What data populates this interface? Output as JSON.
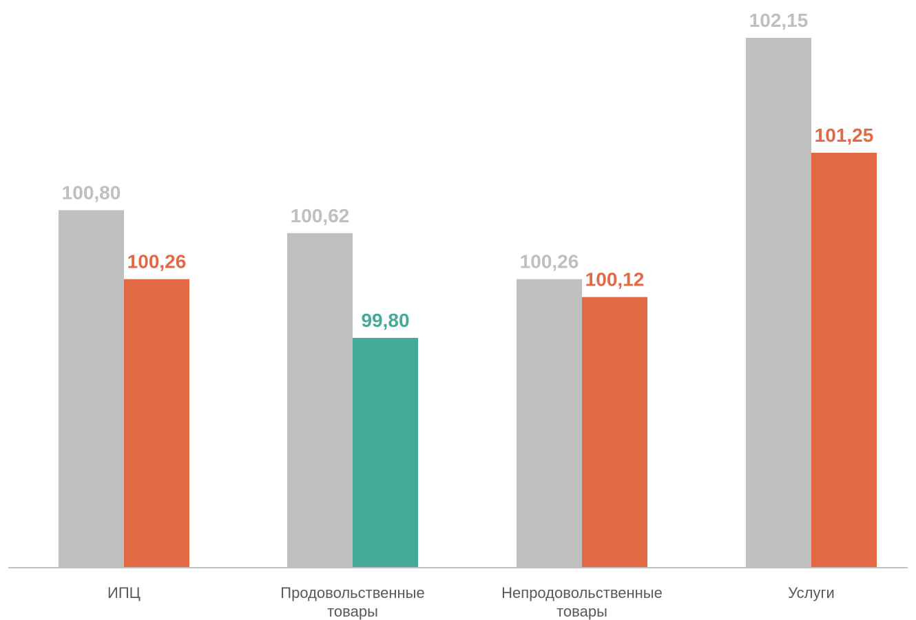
{
  "chart_data": {
    "type": "bar",
    "categories": [
      [
        "ИПЦ"
      ],
      [
        "Продовольственные",
        "товары"
      ],
      [
        "Непродовольственные",
        "товары"
      ],
      [
        "Услуги"
      ]
    ],
    "series": [
      {
        "values": [
          100.8,
          100.62,
          100.26,
          102.15
        ],
        "labels": [
          "100,80",
          "100,62",
          "100,26",
          "102,15"
        ],
        "colors": [
          "#bfbfbf",
          "#bfbfbf",
          "#bfbfbf",
          "#bfbfbf"
        ]
      },
      {
        "values": [
          100.26,
          99.8,
          100.12,
          101.25
        ],
        "labels": [
          "100,26",
          "99,80",
          "100,12",
          "101,25"
        ],
        "colors": [
          "#e36944",
          "#46aa98",
          "#e36944",
          "#e36944"
        ]
      }
    ],
    "title": "",
    "xlabel": "",
    "ylabel": "",
    "ylim": [
      98.0,
      102.15
    ],
    "grid": false,
    "legend": "none",
    "axis_color": "#bfbfbf"
  }
}
